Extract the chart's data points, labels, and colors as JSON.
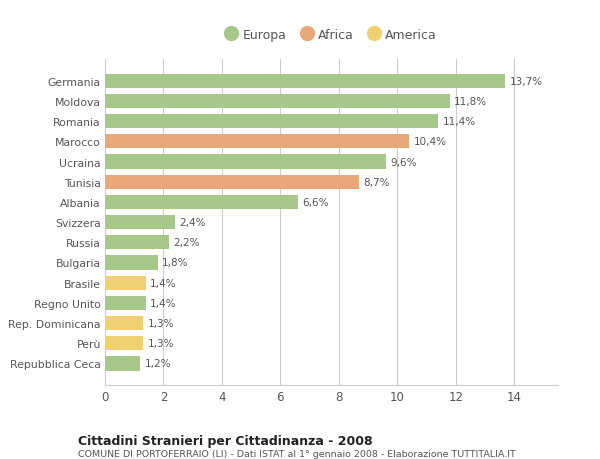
{
  "categories": [
    "Repubblica Ceca",
    "Perù",
    "Rep. Dominicana",
    "Regno Unito",
    "Brasile",
    "Bulgaria",
    "Russia",
    "Svizzera",
    "Albania",
    "Tunisia",
    "Ucraina",
    "Marocco",
    "Romania",
    "Moldova",
    "Germania"
  ],
  "values": [
    1.2,
    1.3,
    1.3,
    1.4,
    1.4,
    1.8,
    2.2,
    2.4,
    6.6,
    8.7,
    9.6,
    10.4,
    11.4,
    11.8,
    13.7
  ],
  "labels": [
    "1,2%",
    "1,3%",
    "1,3%",
    "1,4%",
    "1,4%",
    "1,8%",
    "2,2%",
    "2,4%",
    "6,6%",
    "8,7%",
    "9,6%",
    "10,4%",
    "11,4%",
    "11,8%",
    "13,7%"
  ],
  "continents": [
    "Europa",
    "America",
    "America",
    "Europa",
    "America",
    "Europa",
    "Europa",
    "Europa",
    "Europa",
    "Africa",
    "Europa",
    "Africa",
    "Europa",
    "Europa",
    "Europa"
  ],
  "colors": {
    "Europa": "#a8c88a",
    "Africa": "#e8a878",
    "America": "#f0d070"
  },
  "legend_order": [
    "Europa",
    "Africa",
    "America"
  ],
  "xlim": [
    0,
    15.5
  ],
  "xticks": [
    0,
    2,
    4,
    6,
    8,
    10,
    12,
    14
  ],
  "title": "Cittadini Stranieri per Cittadinanza - 2008",
  "subtitle": "COMUNE DI PORTOFERRAIO (LI) - Dati ISTAT al 1° gennaio 2008 - Elaborazione TUTTITALIA.IT",
  "background_color": "#ffffff",
  "bar_height": 0.7,
  "grid_color": "#cccccc",
  "text_color": "#555555"
}
